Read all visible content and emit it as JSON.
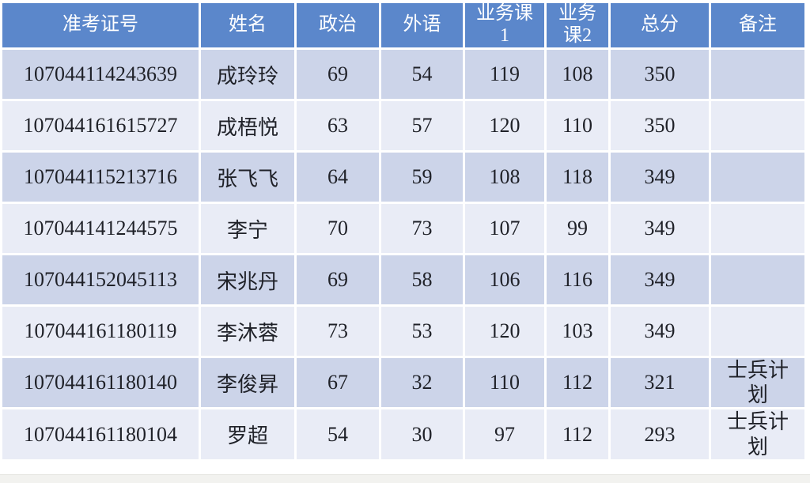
{
  "table": {
    "columns": [
      {
        "key": "id",
        "label": "准考证号"
      },
      {
        "key": "name",
        "label": "姓名"
      },
      {
        "key": "politics",
        "label": "政治"
      },
      {
        "key": "foreign",
        "label": "外语"
      },
      {
        "key": "course1",
        "label": "业务课\n1"
      },
      {
        "key": "course2",
        "label": "业务\n课2"
      },
      {
        "key": "total",
        "label": "总分"
      },
      {
        "key": "remark",
        "label": "备注"
      }
    ],
    "rows": [
      [
        "107044114243639",
        "成玲玲",
        "69",
        "54",
        "119",
        "108",
        "350",
        ""
      ],
      [
        "107044161615727",
        "成梧悦",
        "63",
        "57",
        "120",
        "110",
        "350",
        ""
      ],
      [
        "107044115213716",
        "张飞飞",
        "64",
        "59",
        "108",
        "118",
        "349",
        ""
      ],
      [
        "107044141244575",
        "李宁",
        "70",
        "73",
        "107",
        "99",
        "349",
        ""
      ],
      [
        "107044152045113",
        "宋兆丹",
        "69",
        "58",
        "106",
        "116",
        "349",
        ""
      ],
      [
        "107044161180119",
        "李沐蓉",
        "73",
        "53",
        "120",
        "103",
        "349",
        ""
      ],
      [
        "107044161180140",
        "李俊昇",
        "67",
        "32",
        "110",
        "112",
        "321",
        "士兵计划"
      ],
      [
        "107044161180104",
        "罗超",
        "54",
        "30",
        "97",
        "112",
        "293",
        "士兵计划"
      ]
    ],
    "colors": {
      "header_bg": "#5B87CB",
      "header_text": "#FFFFFF",
      "row_odd_bg": "#CCD4E9",
      "row_even_bg": "#E9ECF6",
      "body_text": "#1F2128",
      "grid": "#FFFFFF"
    }
  }
}
